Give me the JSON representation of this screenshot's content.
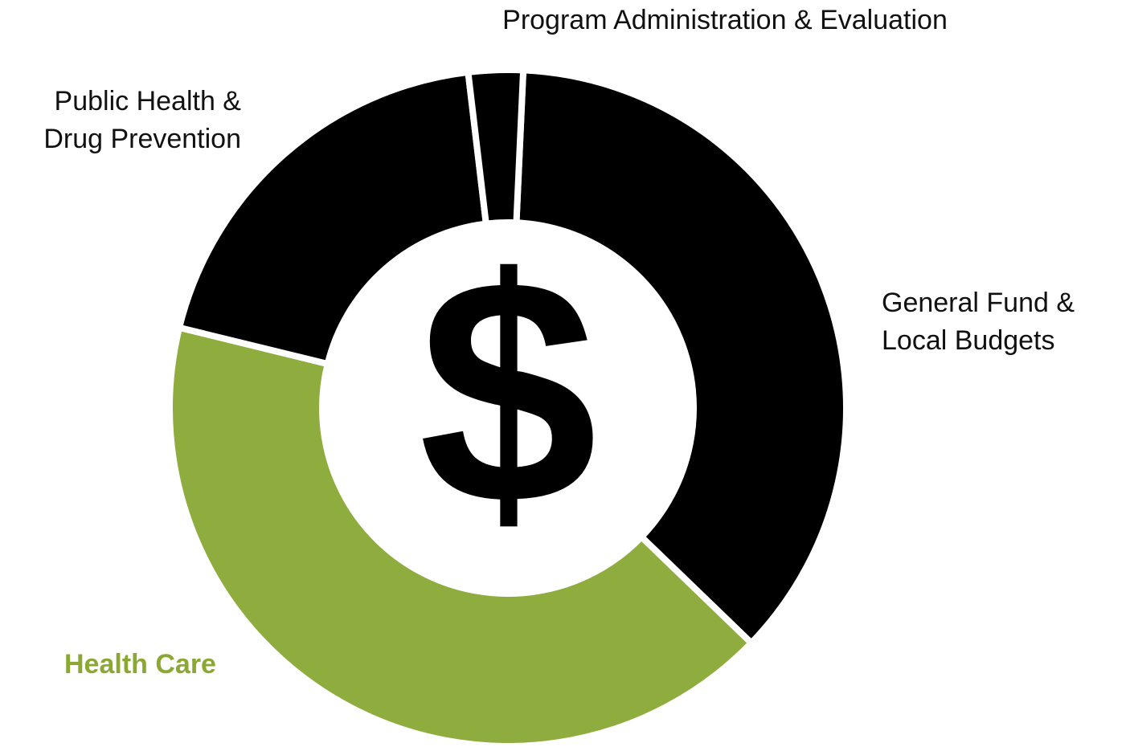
{
  "chart_data": {
    "type": "donut",
    "categories": [
      "General Fund &\nLocal Budgets",
      "Health Care",
      "Public Health &\nDrug Prevention",
      "Program Administration & Evaluation"
    ],
    "values": [
      36.5,
      41.6,
      19.3,
      2.6
    ],
    "colors": [
      "#000000",
      "#8fad3f",
      "#000000",
      "#000000"
    ],
    "center_label": "$"
  }
}
